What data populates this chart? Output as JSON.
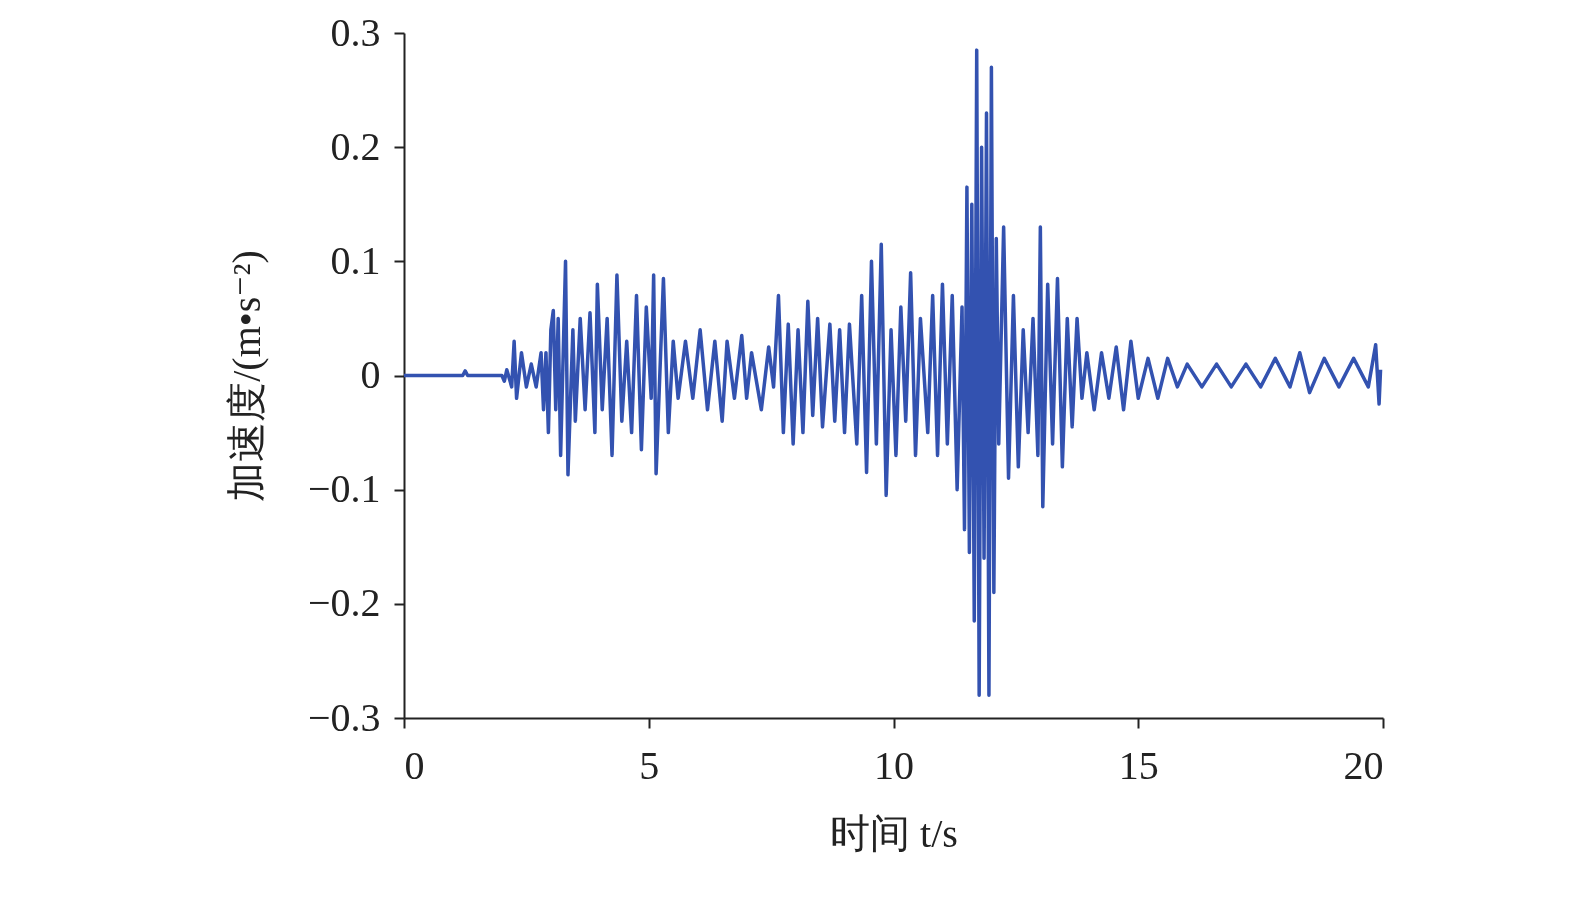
{
  "chart_data": {
    "type": "line",
    "xlabel": "时间 t/s",
    "ylabel": "加速度/(m•s⁻²)",
    "xlim": [
      0,
      20
    ],
    "ylim": [
      -0.3,
      0.3
    ],
    "xticks": [
      0,
      5,
      10,
      15,
      20
    ],
    "yticks": [
      -0.3,
      -0.2,
      -0.1,
      0,
      0.1,
      0.2,
      0.3
    ],
    "x": [
      0,
      1.2,
      1.25,
      1.3,
      2.0,
      2.05,
      2.1,
      2.2,
      2.25,
      2.3,
      2.4,
      2.5,
      2.6,
      2.7,
      2.8,
      2.85,
      2.9,
      2.95,
      3.0,
      3.05,
      3.1,
      3.15,
      3.2,
      3.3,
      3.35,
      3.45,
      3.5,
      3.6,
      3.7,
      3.8,
      3.9,
      3.95,
      4.05,
      4.15,
      4.25,
      4.35,
      4.45,
      4.55,
      4.65,
      4.75,
      4.85,
      4.95,
      5.05,
      5.1,
      5.15,
      5.3,
      5.4,
      5.5,
      5.6,
      5.75,
      5.9,
      6.05,
      6.2,
      6.35,
      6.5,
      6.6,
      6.75,
      6.9,
      7.0,
      7.1,
      7.3,
      7.45,
      7.55,
      7.65,
      7.75,
      7.85,
      7.95,
      8.05,
      8.15,
      8.25,
      8.35,
      8.45,
      8.55,
      8.7,
      8.8,
      8.9,
      9.0,
      9.1,
      9.25,
      9.35,
      9.45,
      9.55,
      9.65,
      9.75,
      9.85,
      9.95,
      10.05,
      10.15,
      10.25,
      10.35,
      10.45,
      10.55,
      10.7,
      10.8,
      10.9,
      11.0,
      11.1,
      11.2,
      11.3,
      11.4,
      11.45,
      11.5,
      11.55,
      11.6,
      11.65,
      11.7,
      11.75,
      11.8,
      11.85,
      11.9,
      11.95,
      12.0,
      12.05,
      12.1,
      12.15,
      12.25,
      12.35,
      12.45,
      12.55,
      12.65,
      12.75,
      12.85,
      12.95,
      13.0,
      13.05,
      13.15,
      13.25,
      13.35,
      13.45,
      13.55,
      13.65,
      13.75,
      13.85,
      13.95,
      14.1,
      14.25,
      14.4,
      14.55,
      14.7,
      14.85,
      15.0,
      15.2,
      15.4,
      15.6,
      15.8,
      16.0,
      16.3,
      16.6,
      16.9,
      17.2,
      17.5,
      17.8,
      18.1,
      18.3,
      18.5,
      18.8,
      19.1,
      19.4,
      19.7,
      19.85,
      19.92,
      19.95
    ],
    "series": [
      {
        "color": "#3352b0",
        "values": [
          0,
          0,
          0.004,
          0,
          0,
          -0.005,
          0.005,
          -0.01,
          0.03,
          -0.02,
          0.02,
          -0.01,
          0.01,
          -0.01,
          0.02,
          -0.03,
          0.02,
          -0.05,
          0.04,
          0.057,
          -0.03,
          0.05,
          -0.07,
          0.1,
          -0.087,
          0.04,
          -0.04,
          0.05,
          -0.03,
          0.055,
          -0.05,
          0.08,
          -0.03,
          0.05,
          -0.07,
          0.088,
          -0.04,
          0.03,
          -0.05,
          0.07,
          -0.065,
          0.06,
          -0.02,
          0.088,
          -0.086,
          0.085,
          -0.05,
          0.03,
          -0.02,
          0.03,
          -0.02,
          0.04,
          -0.03,
          0.03,
          -0.04,
          0.03,
          -0.02,
          0.035,
          -0.02,
          0.02,
          -0.03,
          0.025,
          -0.01,
          0.07,
          -0.05,
          0.045,
          -0.06,
          0.04,
          -0.05,
          0.065,
          -0.035,
          0.05,
          -0.045,
          0.045,
          -0.04,
          0.04,
          -0.05,
          0.045,
          -0.06,
          0.07,
          -0.085,
          0.1,
          -0.06,
          0.115,
          -0.105,
          0.04,
          -0.07,
          0.06,
          -0.04,
          0.09,
          -0.07,
          0.05,
          -0.05,
          0.07,
          -0.07,
          0.08,
          -0.06,
          0.07,
          -0.1,
          0.06,
          -0.135,
          0.165,
          -0.155,
          0.15,
          -0.215,
          0.285,
          -0.28,
          0.2,
          -0.16,
          0.23,
          -0.28,
          0.27,
          -0.19,
          0.12,
          -0.06,
          0.13,
          -0.09,
          0.07,
          -0.08,
          0.04,
          -0.05,
          0.05,
          -0.07,
          0.13,
          -0.115,
          0.08,
          -0.06,
          0.085,
          -0.08,
          0.05,
          -0.045,
          0.05,
          -0.02,
          0.02,
          -0.03,
          0.02,
          -0.02,
          0.025,
          -0.03,
          0.03,
          -0.02,
          0.015,
          -0.02,
          0.015,
          -0.01,
          0.01,
          -0.01,
          0.01,
          -0.01,
          0.01,
          -0.01,
          0.015,
          -0.01,
          0.02,
          -0.015,
          0.015,
          -0.01,
          0.015,
          -0.01,
          0.027,
          -0.025,
          0.005
        ]
      }
    ]
  }
}
